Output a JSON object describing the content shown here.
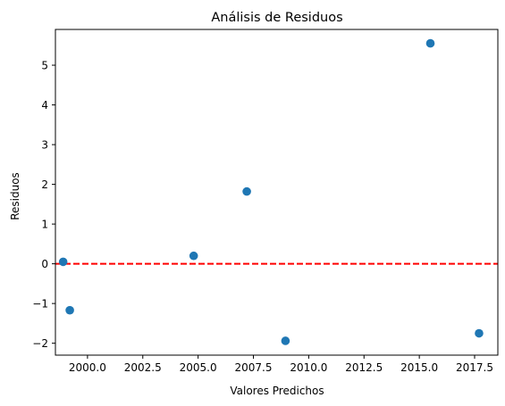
{
  "chart_data": {
    "type": "scatter",
    "title": "Análisis de Residuos",
    "xlabel": "Valores Predichos",
    "ylabel": "Residuos",
    "xlim": [
      1998.55,
      2018.55
    ],
    "ylim": [
      -2.3,
      5.9
    ],
    "x_ticks": [
      2000.0,
      2002.5,
      2005.0,
      2007.5,
      2010.0,
      2012.5,
      2015.0,
      2017.5
    ],
    "x_tick_labels": [
      "2000.0",
      "2002.5",
      "2005.0",
      "2007.5",
      "2010.0",
      "2012.5",
      "2015.0",
      "2017.5"
    ],
    "y_ticks": [
      -2,
      -1,
      0,
      1,
      2,
      3,
      4,
      5
    ],
    "y_tick_labels": [
      "−2",
      "−1",
      "0",
      "1",
      "2",
      "3",
      "4",
      "5"
    ],
    "grid": false,
    "legend": "none",
    "series": [
      {
        "color": "#1f77b4",
        "points": [
          {
            "x": 1998.9,
            "y": 0.05
          },
          {
            "x": 1999.2,
            "y": -1.17
          },
          {
            "x": 2004.8,
            "y": 0.2
          },
          {
            "x": 2007.2,
            "y": 1.82
          },
          {
            "x": 2008.95,
            "y": -1.94
          },
          {
            "x": 2015.5,
            "y": 5.55
          },
          {
            "x": 2017.7,
            "y": -1.75
          }
        ]
      }
    ],
    "reference_line": {
      "y": 0,
      "color": "#ff0000",
      "style": "dashed"
    }
  }
}
